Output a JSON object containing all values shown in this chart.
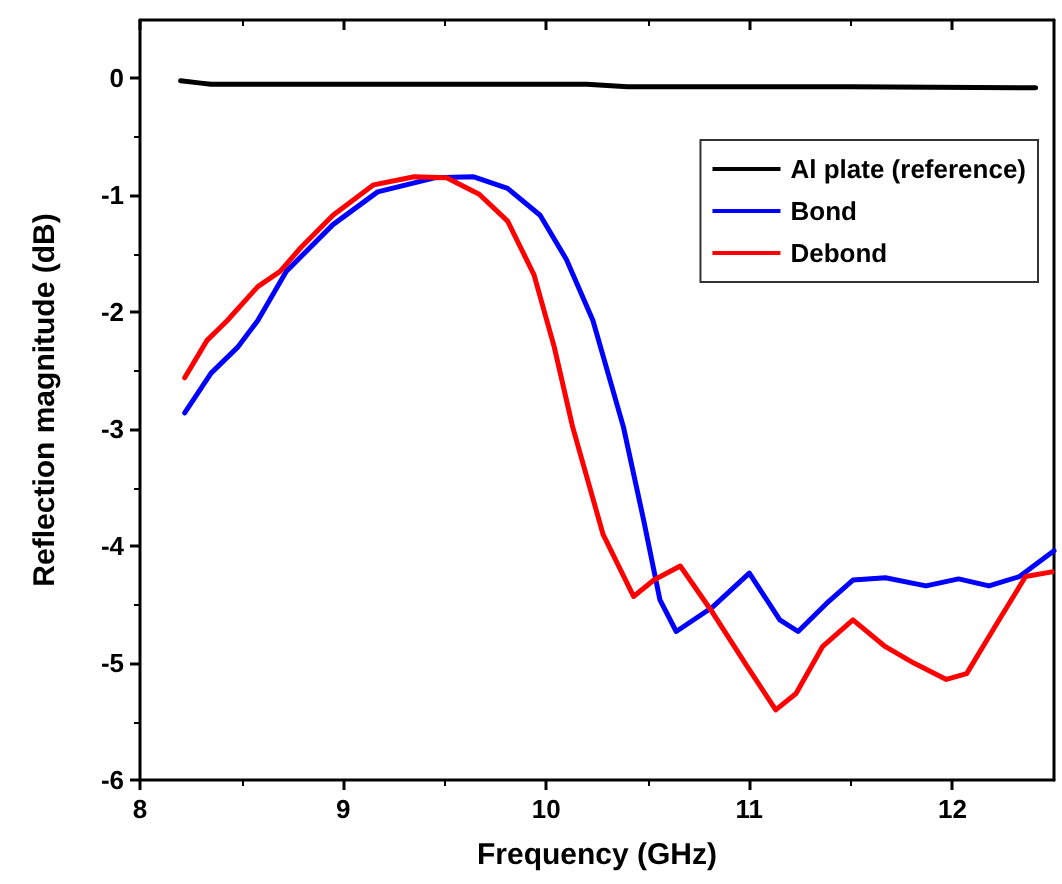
{
  "chart_data": {
    "type": "line",
    "xlabel": "Frequency (GHz)",
    "ylabel": "Reflection magnitude (dB)",
    "xlim": [
      8,
      12.5
    ],
    "xticks": [
      8,
      9,
      10,
      11,
      12
    ],
    "ylim": [
      -6,
      0.5
    ],
    "yticks": [
      -6,
      -5,
      -4,
      -3,
      -2,
      -1,
      0
    ],
    "grid": false,
    "legend": "top right",
    "marker": "none",
    "line_style": "solid",
    "series": [
      {
        "name": "Al plate (reference)",
        "color": "#000000",
        "x": [
          8.2,
          8.3,
          8.35,
          9.5,
          10.2,
          10.4,
          11.5,
          12.41
        ],
        "values": [
          -0.02,
          -0.04,
          -0.05,
          -0.05,
          -0.05,
          -0.07,
          -0.07,
          -0.08
        ]
      },
      {
        "name": "Bond",
        "color": "#0000ff",
        "x": [
          8.22,
          8.35,
          8.48,
          8.58,
          8.72,
          8.95,
          9.17,
          9.31,
          9.45,
          9.64,
          9.81,
          9.97,
          10.1,
          10.23,
          10.38,
          10.48,
          10.56,
          10.64,
          10.82,
          11.0,
          11.15,
          11.24,
          11.38,
          11.51,
          11.67,
          11.87,
          12.03,
          12.18,
          12.33,
          12.5
        ],
        "values": [
          -2.86,
          -2.52,
          -2.3,
          -2.07,
          -1.65,
          -1.25,
          -0.97,
          -0.91,
          -0.85,
          -0.84,
          -0.94,
          -1.17,
          -1.55,
          -2.07,
          -2.98,
          -3.78,
          -4.46,
          -4.73,
          -4.52,
          -4.23,
          -4.63,
          -4.73,
          -4.49,
          -4.29,
          -4.27,
          -4.34,
          -4.28,
          -4.34,
          -4.26,
          -4.04
        ]
      },
      {
        "name": "Debond",
        "color": "#ff0000",
        "x": [
          8.22,
          8.33,
          8.43,
          8.58,
          8.69,
          8.79,
          8.95,
          9.15,
          9.35,
          9.51,
          9.67,
          9.81,
          9.94,
          10.04,
          10.13,
          10.28,
          10.43,
          10.53,
          10.66,
          10.82,
          10.99,
          11.13,
          11.23,
          11.36,
          11.51,
          11.67,
          11.81,
          11.97,
          12.07,
          12.23,
          12.36,
          12.49
        ],
        "values": [
          -2.56,
          -2.24,
          -2.07,
          -1.78,
          -1.65,
          -1.45,
          -1.17,
          -0.91,
          -0.84,
          -0.85,
          -0.99,
          -1.22,
          -1.68,
          -2.3,
          -2.98,
          -3.9,
          -4.43,
          -4.29,
          -4.17,
          -4.57,
          -5.03,
          -5.4,
          -5.26,
          -4.86,
          -4.63,
          -4.86,
          -5.0,
          -5.14,
          -5.09,
          -4.63,
          -4.26,
          -4.22
        ]
      }
    ]
  }
}
